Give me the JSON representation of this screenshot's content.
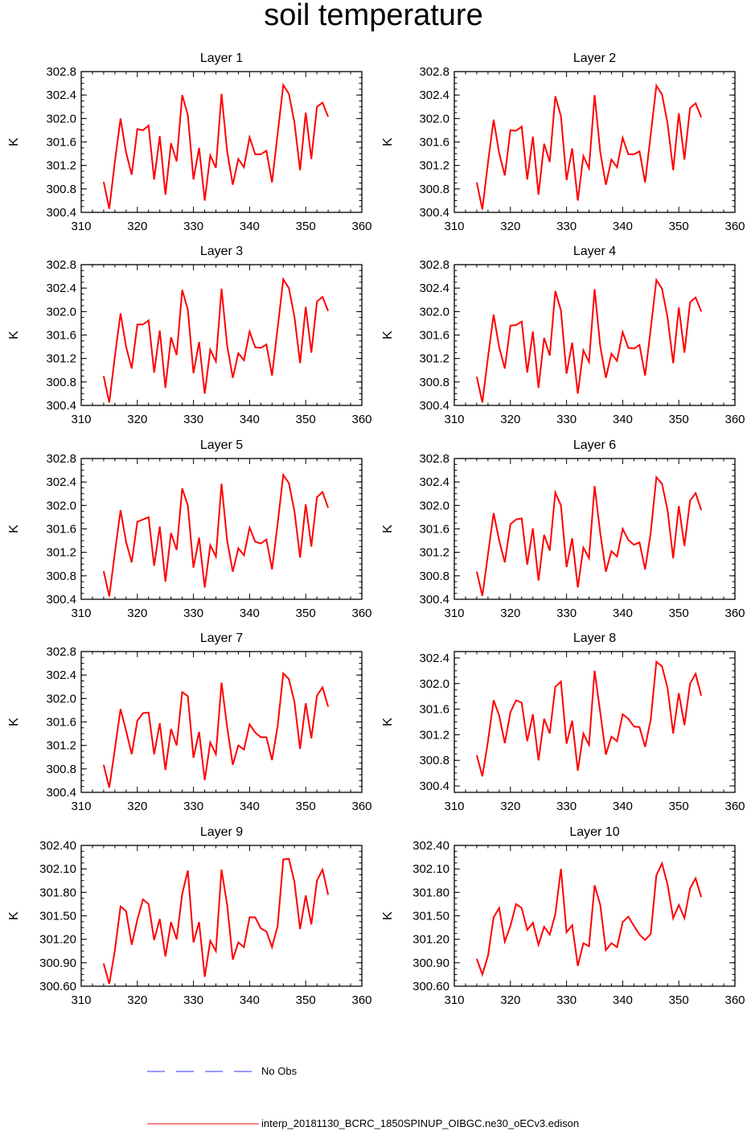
{
  "title": "soil temperature",
  "legend": {
    "obs_label": "No Obs",
    "model_label": "interp_20181130_BCRC_1850SPINUP_OIBGC.ne30_oECv3.edison",
    "obs_color": "#3333ff",
    "model_color": "#ff0000"
  },
  "chart_data": [
    {
      "type": "line",
      "title": "Layer 1",
      "ylabel": "K",
      "xlim": [
        310,
        360
      ],
      "xticks": [
        "310",
        "320",
        "330",
        "340",
        "350",
        "360"
      ],
      "ylim": [
        300.4,
        302.8
      ],
      "yticks": [
        "300.4",
        "300.8",
        "301.2",
        "301.6",
        "302.0",
        "302.4",
        "302.8"
      ],
      "x": [
        314,
        315,
        316,
        317,
        318,
        319,
        320,
        321,
        322,
        323,
        324,
        325,
        326,
        327,
        328,
        329,
        330,
        331,
        332,
        333,
        334,
        335,
        336,
        337,
        338,
        339,
        340,
        341,
        342,
        343,
        344,
        345,
        346,
        347,
        348,
        349,
        350,
        351,
        352,
        353,
        354
      ],
      "series": [
        {
          "name": "model",
          "values": [
            300.92,
            300.46,
            301.27,
            302.0,
            301.42,
            301.04,
            301.82,
            301.8,
            301.88,
            300.96,
            301.7,
            300.7,
            301.58,
            301.27,
            302.4,
            302.06,
            300.96,
            301.5,
            300.6,
            301.37,
            301.16,
            302.42,
            301.44,
            300.87,
            301.31,
            301.17,
            301.68,
            301.39,
            301.39,
            301.45,
            300.91,
            301.74,
            302.57,
            302.42,
            301.93,
            301.12,
            302.1,
            301.31,
            302.2,
            302.27,
            302.03
          ]
        }
      ]
    },
    {
      "type": "line",
      "title": "Layer 2",
      "ylabel": "K",
      "xlim": [
        310,
        360
      ],
      "xticks": [
        "310",
        "320",
        "330",
        "340",
        "350",
        "360"
      ],
      "ylim": [
        300.4,
        302.8
      ],
      "yticks": [
        "300.4",
        "300.8",
        "301.2",
        "301.6",
        "302.0",
        "302.4",
        "302.8"
      ],
      "x": [
        314,
        315,
        316,
        317,
        318,
        319,
        320,
        321,
        322,
        323,
        324,
        325,
        326,
        327,
        328,
        329,
        330,
        331,
        332,
        333,
        334,
        335,
        336,
        337,
        338,
        339,
        340,
        341,
        342,
        343,
        344,
        345,
        346,
        347,
        348,
        349,
        350,
        351,
        352,
        353,
        354
      ],
      "series": [
        {
          "name": "model",
          "values": [
            300.91,
            300.45,
            301.25,
            301.98,
            301.41,
            301.03,
            301.8,
            301.79,
            301.86,
            300.96,
            301.69,
            300.7,
            301.57,
            301.26,
            302.38,
            302.04,
            300.95,
            301.49,
            300.6,
            301.36,
            301.15,
            302.4,
            301.43,
            300.87,
            301.3,
            301.17,
            301.67,
            301.39,
            301.39,
            301.44,
            300.91,
            301.73,
            302.56,
            302.41,
            301.92,
            301.12,
            302.09,
            301.3,
            302.18,
            302.26,
            302.02
          ]
        }
      ]
    },
    {
      "type": "line",
      "title": "Layer 3",
      "ylabel": "K",
      "xlim": [
        310,
        360
      ],
      "xticks": [
        "310",
        "320",
        "330",
        "340",
        "350",
        "360"
      ],
      "ylim": [
        300.4,
        302.8
      ],
      "yticks": [
        "300.4",
        "300.8",
        "301.2",
        "301.6",
        "302.0",
        "302.4",
        "302.8"
      ],
      "x": [
        314,
        315,
        316,
        317,
        318,
        319,
        320,
        321,
        322,
        323,
        324,
        325,
        326,
        327,
        328,
        329,
        330,
        331,
        332,
        333,
        334,
        335,
        336,
        337,
        338,
        339,
        340,
        341,
        342,
        343,
        344,
        345,
        346,
        347,
        348,
        349,
        350,
        351,
        352,
        353,
        354
      ],
      "series": [
        {
          "name": "model",
          "values": [
            300.9,
            300.45,
            301.24,
            301.97,
            301.4,
            301.03,
            301.78,
            301.78,
            301.85,
            300.96,
            301.68,
            300.7,
            301.56,
            301.26,
            302.37,
            302.03,
            300.95,
            301.48,
            300.6,
            301.35,
            301.15,
            302.39,
            301.42,
            300.87,
            301.29,
            301.17,
            301.66,
            301.39,
            301.38,
            301.44,
            300.91,
            301.72,
            302.55,
            302.4,
            301.91,
            301.12,
            302.08,
            301.3,
            302.17,
            302.25,
            302.01
          ]
        }
      ]
    },
    {
      "type": "line",
      "title": "Layer 4",
      "ylabel": "K",
      "xlim": [
        310,
        360
      ],
      "xticks": [
        "310",
        "320",
        "330",
        "340",
        "350",
        "360"
      ],
      "ylim": [
        300.4,
        302.8
      ],
      "yticks": [
        "300.4",
        "300.8",
        "301.2",
        "301.6",
        "302.0",
        "302.4",
        "302.8"
      ],
      "x": [
        314,
        315,
        316,
        317,
        318,
        319,
        320,
        321,
        322,
        323,
        324,
        325,
        326,
        327,
        328,
        329,
        330,
        331,
        332,
        333,
        334,
        335,
        336,
        337,
        338,
        339,
        340,
        341,
        342,
        343,
        344,
        345,
        346,
        347,
        348,
        349,
        350,
        351,
        352,
        353,
        354
      ],
      "series": [
        {
          "name": "model",
          "values": [
            300.89,
            300.45,
            301.22,
            301.95,
            301.39,
            301.03,
            301.76,
            301.77,
            301.83,
            300.96,
            301.66,
            300.7,
            301.55,
            301.25,
            302.35,
            302.02,
            300.94,
            301.47,
            300.6,
            301.34,
            301.14,
            302.38,
            301.41,
            300.87,
            301.28,
            301.16,
            301.65,
            301.38,
            301.37,
            301.43,
            300.91,
            301.71,
            302.54,
            302.39,
            301.9,
            301.12,
            302.07,
            301.3,
            302.16,
            302.24,
            302.0
          ]
        }
      ]
    },
    {
      "type": "line",
      "title": "Layer 5",
      "ylabel": "K",
      "xlim": [
        310,
        360
      ],
      "xticks": [
        "310",
        "320",
        "330",
        "340",
        "350",
        "360"
      ],
      "ylim": [
        300.4,
        302.8
      ],
      "yticks": [
        "300.4",
        "300.8",
        "301.2",
        "301.6",
        "302.0",
        "302.4",
        "302.8"
      ],
      "x": [
        314,
        315,
        316,
        317,
        318,
        319,
        320,
        321,
        322,
        323,
        324,
        325,
        326,
        327,
        328,
        329,
        330,
        331,
        332,
        333,
        334,
        335,
        336,
        337,
        338,
        339,
        340,
        341,
        342,
        343,
        344,
        345,
        346,
        347,
        348,
        349,
        350,
        351,
        352,
        353,
        354
      ],
      "series": [
        {
          "name": "model",
          "values": [
            300.88,
            300.45,
            301.2,
            301.92,
            301.38,
            301.03,
            301.72,
            301.76,
            301.8,
            300.97,
            301.64,
            300.7,
            301.53,
            301.24,
            302.29,
            302.0,
            300.94,
            301.45,
            300.6,
            301.32,
            301.13,
            302.37,
            301.4,
            300.87,
            301.27,
            301.15,
            301.62,
            301.38,
            301.35,
            301.42,
            300.91,
            301.69,
            302.52,
            302.38,
            301.9,
            301.11,
            302.02,
            301.3,
            302.14,
            302.23,
            301.96
          ]
        }
      ]
    },
    {
      "type": "line",
      "title": "Layer 6",
      "ylabel": "K",
      "xlim": [
        310,
        360
      ],
      "xticks": [
        "310",
        "320",
        "330",
        "340",
        "350",
        "360"
      ],
      "ylim": [
        300.4,
        302.8
      ],
      "yticks": [
        "300.4",
        "300.8",
        "301.2",
        "301.6",
        "302.0",
        "302.4",
        "302.8"
      ],
      "x": [
        314,
        315,
        316,
        317,
        318,
        319,
        320,
        321,
        322,
        323,
        324,
        325,
        326,
        327,
        328,
        329,
        330,
        331,
        332,
        333,
        334,
        335,
        336,
        337,
        338,
        339,
        340,
        341,
        342,
        343,
        344,
        345,
        346,
        347,
        348,
        349,
        350,
        351,
        352,
        353,
        354
      ],
      "series": [
        {
          "name": "model",
          "values": [
            300.87,
            300.46,
            301.17,
            301.87,
            301.4,
            301.03,
            301.68,
            301.76,
            301.78,
            300.99,
            301.61,
            300.72,
            301.5,
            301.23,
            302.22,
            302.0,
            300.95,
            301.44,
            300.6,
            301.28,
            301.1,
            302.33,
            301.53,
            300.87,
            301.22,
            301.13,
            301.6,
            301.41,
            301.33,
            301.37,
            300.91,
            301.54,
            302.48,
            302.37,
            301.92,
            301.1,
            301.99,
            301.31,
            302.08,
            302.21,
            301.92
          ]
        }
      ]
    },
    {
      "type": "line",
      "title": "Layer 7",
      "ylabel": "K",
      "xlim": [
        310,
        360
      ],
      "xticks": [
        "310",
        "320",
        "330",
        "340",
        "350",
        "360"
      ],
      "ylim": [
        300.4,
        302.8
      ],
      "yticks": [
        "300.4",
        "300.8",
        "301.2",
        "301.6",
        "302.0",
        "302.4",
        "302.8"
      ],
      "x": [
        314,
        315,
        316,
        317,
        318,
        319,
        320,
        321,
        322,
        323,
        324,
        325,
        326,
        327,
        328,
        329,
        330,
        331,
        332,
        333,
        334,
        335,
        336,
        337,
        338,
        339,
        340,
        341,
        342,
        343,
        344,
        345,
        346,
        347,
        348,
        349,
        350,
        351,
        352,
        353,
        354
      ],
      "series": [
        {
          "name": "model",
          "values": [
            300.87,
            300.48,
            301.14,
            301.82,
            301.45,
            301.05,
            301.62,
            301.75,
            301.76,
            301.05,
            301.58,
            300.78,
            301.48,
            301.2,
            302.11,
            302.04,
            300.99,
            301.43,
            300.61,
            301.25,
            301.05,
            302.27,
            301.51,
            300.87,
            301.2,
            301.13,
            301.56,
            301.42,
            301.34,
            301.34,
            300.95,
            301.53,
            302.43,
            302.33,
            301.94,
            301.14,
            301.92,
            301.32,
            302.05,
            302.19,
            301.86
          ]
        }
      ]
    },
    {
      "type": "line",
      "title": "Layer 8",
      "ylabel": "K",
      "xlim": [
        310,
        360
      ],
      "xticks": [
        "310",
        "320",
        "330",
        "340",
        "350",
        "360"
      ],
      "ylim": [
        300.3,
        302.5
      ],
      "yticks": [
        "300.4",
        "300.8",
        "301.2",
        "301.6",
        "302.0",
        "302.4"
      ],
      "x": [
        314,
        315,
        316,
        317,
        318,
        319,
        320,
        321,
        322,
        323,
        324,
        325,
        326,
        327,
        328,
        329,
        330,
        331,
        332,
        333,
        334,
        335,
        336,
        337,
        338,
        339,
        340,
        341,
        342,
        343,
        344,
        345,
        346,
        347,
        348,
        349,
        350,
        351,
        352,
        353,
        354
      ],
      "series": [
        {
          "name": "model",
          "values": [
            300.88,
            300.55,
            301.1,
            301.74,
            301.5,
            301.07,
            301.55,
            301.74,
            301.7,
            301.1,
            301.52,
            300.8,
            301.45,
            301.22,
            301.95,
            302.03,
            301.06,
            301.42,
            300.64,
            301.22,
            301.04,
            302.2,
            301.55,
            300.89,
            301.17,
            301.1,
            301.52,
            301.45,
            301.33,
            301.32,
            301.01,
            301.44,
            302.34,
            302.27,
            301.93,
            301.22,
            301.85,
            301.35,
            302.0,
            302.15,
            301.81
          ]
        }
      ]
    },
    {
      "type": "line",
      "title": "Layer 9",
      "ylabel": "K",
      "xlim": [
        310,
        360
      ],
      "xticks": [
        "310",
        "320",
        "330",
        "340",
        "350",
        "360"
      ],
      "ylim": [
        300.6,
        302.4
      ],
      "yticks": [
        "300.60",
        "300.90",
        "301.20",
        "301.50",
        "301.80",
        "302.10",
        "302.40"
      ],
      "x": [
        314,
        315,
        316,
        317,
        318,
        319,
        320,
        321,
        322,
        323,
        324,
        325,
        326,
        327,
        328,
        329,
        330,
        331,
        332,
        333,
        334,
        335,
        336,
        337,
        338,
        339,
        340,
        341,
        342,
        343,
        344,
        345,
        346,
        347,
        348,
        349,
        350,
        351,
        352,
        353,
        354
      ],
      "series": [
        {
          "name": "model",
          "values": [
            300.89,
            300.63,
            301.06,
            301.62,
            301.56,
            301.13,
            301.45,
            301.71,
            301.65,
            301.19,
            301.46,
            300.98,
            301.42,
            301.2,
            301.78,
            302.08,
            301.16,
            301.42,
            300.72,
            301.18,
            301.05,
            302.09,
            301.64,
            300.94,
            301.16,
            301.1,
            301.48,
            301.48,
            301.34,
            301.3,
            301.1,
            301.37,
            302.22,
            302.23,
            301.93,
            301.33,
            301.76,
            301.39,
            301.95,
            302.09,
            301.77
          ]
        }
      ]
    },
    {
      "type": "line",
      "title": "Layer 10",
      "ylabel": "K",
      "xlim": [
        310,
        360
      ],
      "xticks": [
        "310",
        "320",
        "330",
        "340",
        "350",
        "360"
      ],
      "ylim": [
        300.6,
        302.4
      ],
      "yticks": [
        "300.60",
        "300.90",
        "301.20",
        "301.50",
        "301.80",
        "302.10",
        "302.40"
      ],
      "x": [
        314,
        315,
        316,
        317,
        318,
        319,
        320,
        321,
        322,
        323,
        324,
        325,
        326,
        327,
        328,
        329,
        330,
        331,
        332,
        333,
        334,
        335,
        336,
        337,
        338,
        339,
        340,
        341,
        342,
        343,
        344,
        345,
        346,
        347,
        348,
        349,
        350,
        351,
        352,
        353,
        354
      ],
      "series": [
        {
          "name": "model",
          "values": [
            300.95,
            300.75,
            300.99,
            301.48,
            301.6,
            301.17,
            301.37,
            301.65,
            301.6,
            301.32,
            301.41,
            301.13,
            301.36,
            301.26,
            301.52,
            302.1,
            301.29,
            301.38,
            300.86,
            301.15,
            301.11,
            301.89,
            301.64,
            301.06,
            301.15,
            301.1,
            301.42,
            301.49,
            301.37,
            301.26,
            301.19,
            301.27,
            302.02,
            302.17,
            301.9,
            301.47,
            301.64,
            301.47,
            301.85,
            301.98,
            301.74
          ]
        }
      ]
    }
  ]
}
